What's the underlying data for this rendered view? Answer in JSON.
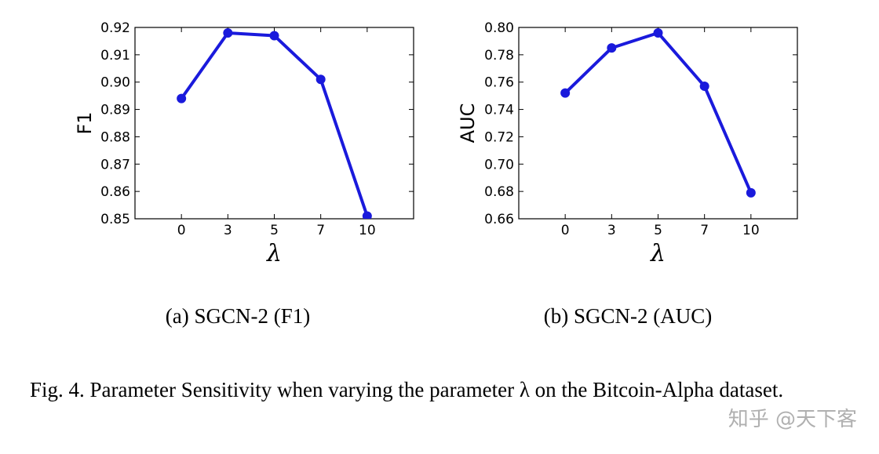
{
  "chart_data": [
    {
      "type": "line",
      "categories": [
        "0",
        "3",
        "5",
        "7",
        "10"
      ],
      "values": [
        0.894,
        0.918,
        0.917,
        0.901,
        0.851
      ],
      "ylim": [
        0.85,
        0.92
      ],
      "yticks": [
        "0.85",
        "0.86",
        "0.87",
        "0.88",
        "0.89",
        "0.90",
        "0.91",
        "0.92"
      ],
      "ylabel": "F1",
      "xlabel": "λ",
      "subcaption": "(a)  SGCN-2 (F1)",
      "color": "#1a1adc"
    },
    {
      "type": "line",
      "categories": [
        "0",
        "3",
        "5",
        "7",
        "10"
      ],
      "values": [
        0.752,
        0.785,
        0.796,
        0.757,
        0.679
      ],
      "ylim": [
        0.66,
        0.8
      ],
      "yticks": [
        "0.66",
        "0.68",
        "0.70",
        "0.72",
        "0.74",
        "0.76",
        "0.78",
        "0.80"
      ],
      "ylabel": "AUC",
      "xlabel": "λ",
      "subcaption": "(b)  SGCN-2 (AUC)",
      "color": "#1a1adc"
    }
  ],
  "caption": "Fig. 4.  Parameter Sensitivity when varying the parameter λ on the Bitcoin-Alpha dataset.",
  "watermark": "知乎 @天下客"
}
